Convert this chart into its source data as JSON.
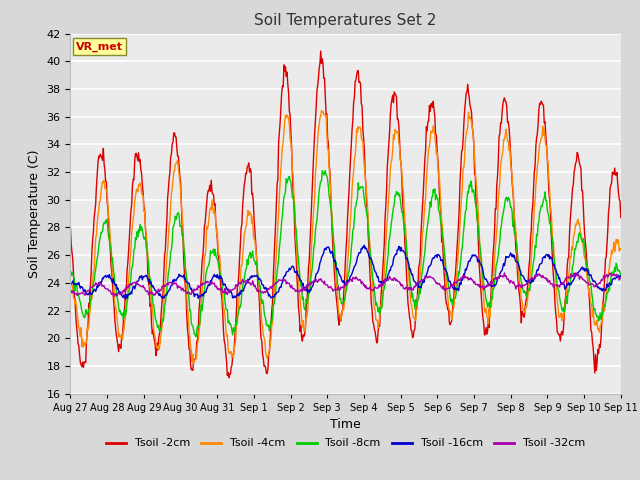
{
  "title": "Soil Temperatures Set 2",
  "xlabel": "Time",
  "ylabel": "Soil Temperature (C)",
  "ylim": [
    16,
    42
  ],
  "yticks": [
    16,
    18,
    20,
    22,
    24,
    26,
    28,
    30,
    32,
    34,
    36,
    38,
    40,
    42
  ],
  "xtick_labels": [
    "Aug 27",
    "Aug 28",
    "Aug 29",
    "Aug 30",
    "Aug 31",
    "Sep 1",
    "Sep 2",
    "Sep 3",
    "Sep 4",
    "Sep 5",
    "Sep 6",
    "Sep 7",
    "Sep 8",
    "Sep 9",
    "Sep 10",
    "Sep 11"
  ],
  "legend_labels": [
    "Tsoil -2cm",
    "Tsoil -4cm",
    "Tsoil -8cm",
    "Tsoil -16cm",
    "Tsoil -32cm"
  ],
  "line_colors": [
    "#dd0000",
    "#ff8800",
    "#00cc00",
    "#0000cc",
    "#aa00aa"
  ],
  "annotation_text": "VR_met",
  "annotation_color": "#cc0000",
  "annotation_bg": "#ffff99",
  "background_color": "#d8d8d8",
  "plot_bg_color": "#ebebeb",
  "grid_color": "#ffffff",
  "num_days": 15,
  "points_per_day": 48
}
